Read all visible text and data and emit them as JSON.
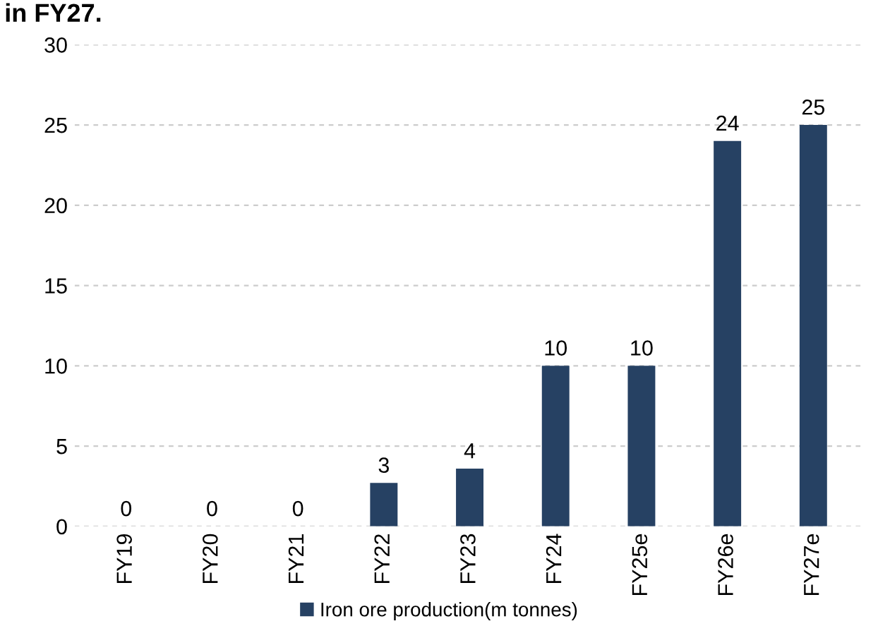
{
  "chart_data": {
    "type": "bar",
    "title": "in FY27.",
    "categories": [
      "FY19",
      "FY20",
      "FY21",
      "FY22",
      "FY23",
      "FY24",
      "FY25e",
      "FY26e",
      "FY27e"
    ],
    "series": [
      {
        "name": "Iron ore production(m tonnes)",
        "color": "#264163",
        "values": [
          0,
          0,
          0,
          2.7,
          3.6,
          10,
          10,
          24,
          25
        ],
        "value_labels": [
          "0",
          "0",
          "0",
          "3",
          "4",
          "10",
          "10",
          "24",
          "25"
        ]
      }
    ],
    "ylim": [
      0,
      30
    ],
    "yticks": [
      0,
      5,
      10,
      15,
      20,
      25,
      30
    ],
    "grid": "y",
    "legend": "bottom"
  }
}
